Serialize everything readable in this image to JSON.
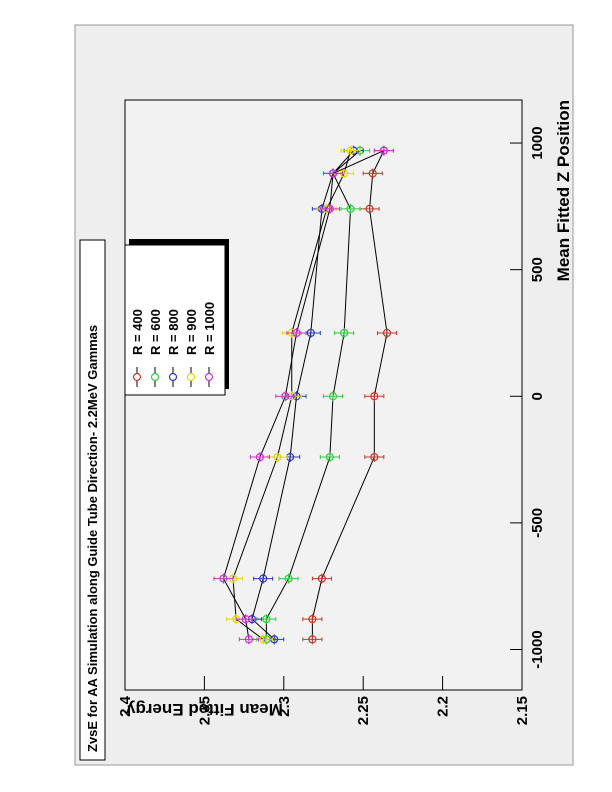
{
  "chart_data": {
    "type": "line",
    "title": "ZvsE for AA Simulation along Guide Tube Direction- 2.2MeV Gammas",
    "x_label": "Mean Fitted Z Position",
    "y_label": "Mean Fitted Energy",
    "x": [
      -960,
      -880,
      -720,
      -240,
      0,
      250,
      740,
      880,
      970
    ],
    "series": [
      {
        "name": "R = 400",
        "color": "#c0392b",
        "values": [
          2.282,
          2.282,
          2.276,
          2.243,
          2.243,
          2.235,
          2.246,
          2.244,
          2.237
        ],
        "errors": [
          0.006,
          0.006,
          0.006,
          0.006,
          0.006,
          0.006,
          0.006,
          0.006,
          0.006
        ]
      },
      {
        "name": "R = 600",
        "color": "#2ecc40",
        "values": [
          2.311,
          2.311,
          2.297,
          2.271,
          2.269,
          2.262,
          2.258,
          2.269,
          2.252
        ],
        "errors": [
          0.006,
          0.006,
          0.006,
          0.006,
          0.006,
          0.006,
          0.006,
          0.006,
          0.006
        ]
      },
      {
        "name": "R = 800",
        "color": "#2c3cb8",
        "values": [
          2.306,
          2.32,
          2.313,
          2.296,
          2.292,
          2.283,
          2.276,
          2.269,
          2.256
        ],
        "errors": [
          0.006,
          0.006,
          0.006,
          0.006,
          0.006,
          0.006,
          0.006,
          0.006,
          0.006
        ]
      },
      {
        "name": "R = 900",
        "color": "#e6d800",
        "values": [
          2.313,
          2.33,
          2.332,
          2.304,
          2.295,
          2.295,
          2.273,
          2.262,
          2.258
        ],
        "errors": [
          0.006,
          0.006,
          0.006,
          0.006,
          0.006,
          0.006,
          0.006,
          0.006,
          0.006
        ]
      },
      {
        "name": "R = 1000",
        "color": "#d030d0",
        "values": [
          2.322,
          2.324,
          2.338,
          2.315,
          2.299,
          2.292,
          2.271,
          2.269,
          2.237
        ],
        "errors": [
          0.006,
          0.006,
          0.006,
          0.006,
          0.006,
          0.006,
          0.006,
          0.006,
          0.006
        ]
      }
    ],
    "xlim": [
      -1160,
      1170
    ],
    "xticks": [
      -1000,
      -500,
      0,
      500,
      1000
    ],
    "ylim": [
      2.15,
      2.4
    ],
    "yticks": [
      2.15,
      2.2,
      2.25,
      2.3,
      2.35,
      2.4
    ],
    "line_color": "#000000"
  }
}
